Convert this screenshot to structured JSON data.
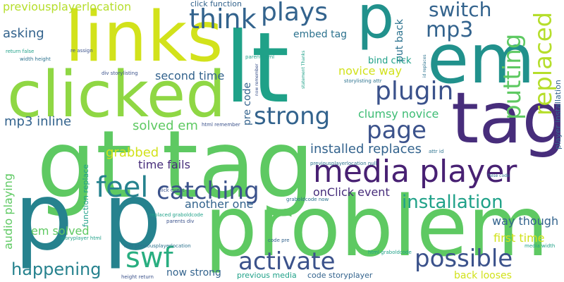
{
  "palette": {
    "yellow": "#d2e21b",
    "lime": "#b5de2b",
    "light_green": "#8fd744",
    "green": "#5ec962",
    "mint": "#3dbc74",
    "sea": "#28ae80",
    "teal": "#1fa188",
    "teal_dark": "#21918c",
    "cyan_blue": "#26828e",
    "steel": "#2c728e",
    "blue": "#33638d",
    "indigo": "#3b528b",
    "purple_blue": "#424086",
    "purple": "#472d7b",
    "deep_purple": "#482173",
    "violet": "#440154"
  },
  "words": {
    "gt_tag": "gt tag",
    "lt": "lt",
    "links": "links",
    "clicked": "clicked",
    "problem": "problem",
    "tag": "tag",
    "p_p": "p p",
    "em": "em",
    "p": "p",
    "media_player": "media player",
    "plugin": "plugin",
    "replaced": "replaced",
    "putting": "putting",
    "mp3": "mp3",
    "think": "think",
    "plays": "plays",
    "switch": "switch",
    "strong": "strong",
    "page": "page",
    "catching": "catching",
    "feel": "feel",
    "swf": "swf",
    "activate": "activate",
    "possible": "possible",
    "installation": "installation",
    "happening": "happening",
    "installed_replaces": "installed replaces",
    "previousplayerlocation": "previousplayerlocation",
    "asking": "asking",
    "embed_tag": "embed tag",
    "click_function": "click function",
    "put_back": "put back",
    "bind_click": "bind click",
    "novice_way": "novice way",
    "clumsy_novice": "clumsy novice",
    "second_time": "second time",
    "pre_code": "pre code",
    "mp3_inline": "mp3 inline",
    "solved_em": "solved em",
    "grabbed": "grabbed",
    "time_fails": "time fails",
    "audio_playing": "audio playing",
    "onclick_event": "onClick event",
    "another_one": "another one",
    "way_though": "way though",
    "first_time": "first time",
    "em_solved": "em solved",
    "function_replace": "function replace",
    "now_strong": "now strong",
    "previous_media": "previous media",
    "code_storyplayer": "code storyplayer",
    "back_looses": "back looses",
    "player_installation": "player installation",
    "return_false": "return false",
    "re_assign": "re assign",
    "width_height": "width height",
    "parent_html": "parent html",
    "now_remember": "now remember",
    "statement_thanks": "statement Thanks",
    "storylisting_attr": "storylisting attr",
    "id_replaces": "id replaces",
    "div_storylisting": "div storylisting",
    "html_remember": "html remember",
    "attr_id": "attr id",
    "false_code": "false code",
    "previousplayerlocation_null": "previousplayerlocation null",
    "click_event": "click event",
    "graboldcode_now": "graboldcode now",
    "replaced_graboldcode": "replaced graboldcode",
    "parents_div": "parents div",
    "storyplayer_html": "storyplayer html",
    "null_previousplayerlocation": "null previousplayerlocation",
    "code_pre": "code pre",
    "html_graboldcode": "html graboldcode",
    "media_width": "media width",
    "height_return": "height return"
  }
}
